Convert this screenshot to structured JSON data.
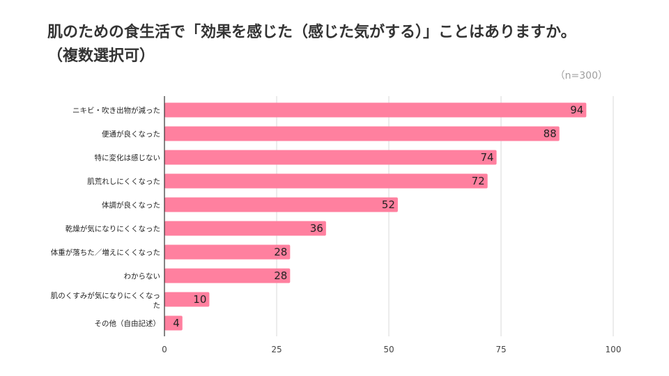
{
  "chart_data": {
    "type": "bar",
    "orientation": "horizontal",
    "title_lines": [
      "肌のための食生活で「効果を感じた（感じた気がする）」ことはありますか。",
      "（複数選択可）"
    ],
    "note": "（n=300）",
    "categories": [
      "ニキビ・吹き出物が減った",
      "便通が良くなった",
      "特に変化は感じない",
      "肌荒れしにくくなった",
      "体調が良くなった",
      "乾燥が気になりにくくなった",
      "体重が落ちた／増えにくくなった",
      "わからない",
      "肌のくすみが気になりにくくなった",
      "その他（自由記述）"
    ],
    "values": [
      94,
      88,
      74,
      72,
      52,
      36,
      28,
      28,
      10,
      4
    ],
    "xlim": [
      0,
      100
    ],
    "xticks": [
      0,
      25,
      50,
      75,
      100
    ],
    "bar_color": "#ff809f",
    "grid": true,
    "legend": "none"
  }
}
